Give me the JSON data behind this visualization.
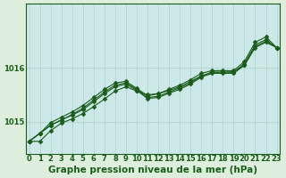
{
  "title": "Graphe pression niveau de la mer (hPa)",
  "bg_color": "#cde8e8",
  "grid_color": "#b0d0c8",
  "line_color": "#1a5c1a",
  "xlabel_color": "#1a5c1a",
  "x_min": 0,
  "x_max": 23,
  "y_min": 1014.4,
  "y_max": 1017.2,
  "yticks": [
    1015,
    1016
  ],
  "xticks": [
    0,
    1,
    2,
    3,
    4,
    5,
    6,
    7,
    8,
    9,
    10,
    11,
    12,
    13,
    14,
    15,
    16,
    17,
    18,
    19,
    20,
    21,
    22,
    23
  ],
  "series": [
    [
      1014.63,
      1014.63,
      1014.83,
      1014.97,
      1015.05,
      1015.15,
      1015.28,
      1015.42,
      1015.57,
      1015.65,
      1015.57,
      1015.5,
      1015.52,
      1015.58,
      1015.65,
      1015.75,
      1015.85,
      1015.92,
      1015.92,
      1015.93,
      1016.05,
      1016.38,
      1016.48,
      1016.38
    ],
    [
      1014.63,
      1014.78,
      1014.98,
      1015.08,
      1015.18,
      1015.3,
      1015.45,
      1015.6,
      1015.72,
      1015.75,
      1015.62,
      1015.48,
      1015.52,
      1015.6,
      1015.68,
      1015.78,
      1015.9,
      1015.95,
      1015.95,
      1015.95,
      1016.12,
      1016.48,
      1016.58,
      1016.38
    ],
    [
      1014.63,
      1014.78,
      1014.93,
      1015.03,
      1015.13,
      1015.25,
      1015.4,
      1015.55,
      1015.68,
      1015.72,
      1015.6,
      1015.45,
      1015.47,
      1015.55,
      1015.63,
      1015.72,
      1015.85,
      1015.92,
      1015.92,
      1015.92,
      1016.08,
      1016.43,
      1016.53,
      1016.38
    ],
    [
      1014.63,
      1014.78,
      1014.93,
      1015.03,
      1015.12,
      1015.22,
      1015.37,
      1015.52,
      1015.65,
      1015.7,
      1015.58,
      1015.43,
      1015.45,
      1015.53,
      1015.6,
      1015.7,
      1015.83,
      1015.9,
      1015.9,
      1015.9,
      1016.05,
      1016.4,
      1016.5,
      1016.38
    ]
  ],
  "marker": "D",
  "marker_size": 2.5,
  "linewidth": 0.8,
  "title_fontsize": 7.5,
  "tick_fontsize": 6.0,
  "figure_bg": "#ddeedd"
}
